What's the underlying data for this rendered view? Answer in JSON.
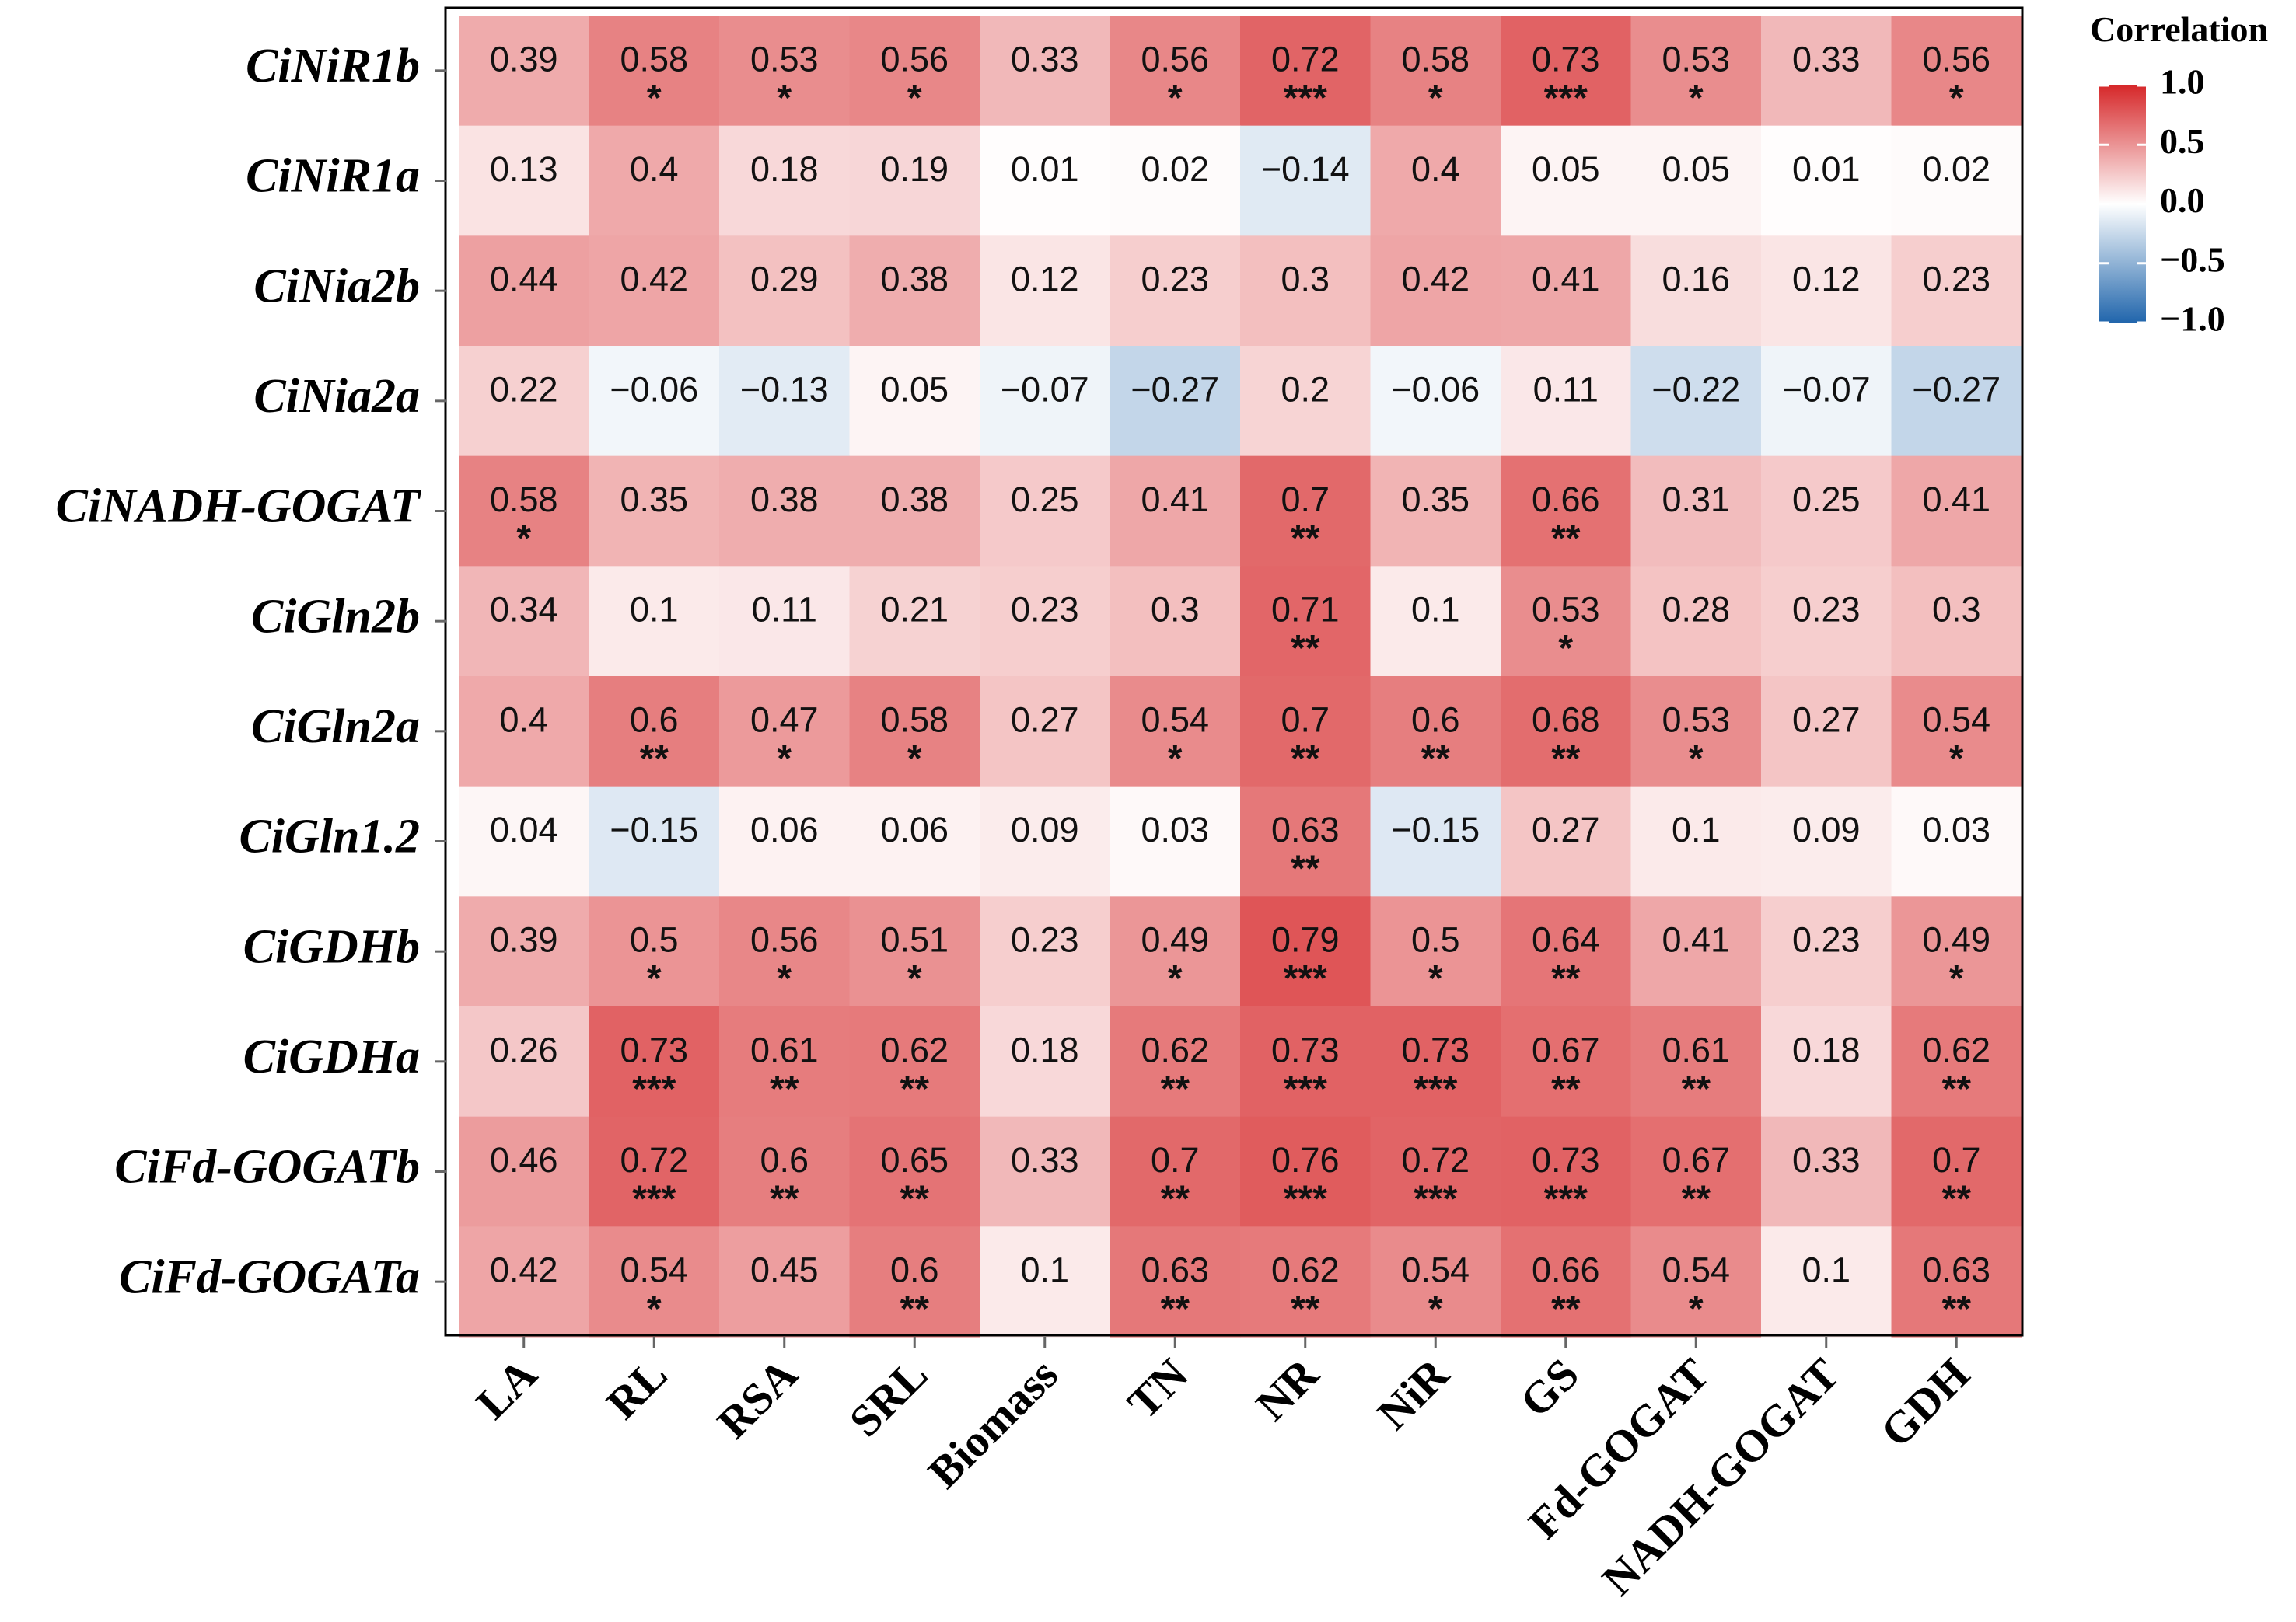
{
  "chart_data": {
    "type": "heatmap",
    "title": "",
    "rows": [
      "CiNiR1b",
      "CiNiR1a",
      "CiNia2b",
      "CiNia2a",
      "CiNADH-GOGAT",
      "CiGln2b",
      "CiGln2a",
      "CiGln1.2",
      "CiGDHb",
      "CiGDHa",
      "CiFd-GOGATb",
      "CiFd-GOGATa"
    ],
    "columns": [
      "LA",
      "RL",
      "RSA",
      "SRL",
      "Biomass",
      "TN",
      "NR",
      "NiR",
      "GS",
      "Fd-GOGAT",
      "NADH-GOGAT",
      "GDH"
    ],
    "values": [
      [
        "0.39",
        "0.58",
        "0.53",
        "0.56",
        "0.33",
        "0.56",
        "0.72",
        "0.58",
        "0.73",
        "0.53",
        "0.33",
        "0.56"
      ],
      [
        "0.13",
        "0.4",
        "0.18",
        "0.19",
        "0.01",
        "0.02",
        "−0.14",
        "0.4",
        "0.05",
        "0.05",
        "0.01",
        "0.02"
      ],
      [
        "0.44",
        "0.42",
        "0.29",
        "0.38",
        "0.12",
        "0.23",
        "0.3",
        "0.42",
        "0.41",
        "0.16",
        "0.12",
        "0.23"
      ],
      [
        "0.22",
        "−0.06",
        "−0.13",
        "0.05",
        "−0.07",
        "−0.27",
        "0.2",
        "−0.06",
        "0.11",
        "−0.22",
        "−0.07",
        "−0.27"
      ],
      [
        "0.58",
        "0.35",
        "0.38",
        "0.38",
        "0.25",
        "0.41",
        "0.7",
        "0.35",
        "0.66",
        "0.31",
        "0.25",
        "0.41"
      ],
      [
        "0.34",
        "0.1",
        "0.11",
        "0.21",
        "0.23",
        "0.3",
        "0.71",
        "0.1",
        "0.53",
        "0.28",
        "0.23",
        "0.3"
      ],
      [
        "0.4",
        "0.6",
        "0.47",
        "0.58",
        "0.27",
        "0.54",
        "0.7",
        "0.6",
        "0.68",
        "0.53",
        "0.27",
        "0.54"
      ],
      [
        "0.04",
        "−0.15",
        "0.06",
        "0.06",
        "0.09",
        "0.03",
        "0.63",
        "−0.15",
        "0.27",
        "0.1",
        "0.09",
        "0.03"
      ],
      [
        "0.39",
        "0.5",
        "0.56",
        "0.51",
        "0.23",
        "0.49",
        "0.79",
        "0.5",
        "0.64",
        "0.41",
        "0.23",
        "0.49"
      ],
      [
        "0.26",
        "0.73",
        "0.61",
        "0.62",
        "0.18",
        "0.62",
        "0.73",
        "0.73",
        "0.67",
        "0.61",
        "0.18",
        "0.62"
      ],
      [
        "0.46",
        "0.72",
        "0.6",
        "0.65",
        "0.33",
        "0.7",
        "0.76",
        "0.72",
        "0.73",
        "0.67",
        "0.33",
        "0.7"
      ],
      [
        "0.42",
        "0.54",
        "0.45",
        "0.6",
        "0.1",
        "0.63",
        "0.62",
        "0.54",
        "0.66",
        "0.54",
        "0.1",
        "0.63"
      ]
    ],
    "significance": [
      [
        "",
        "*",
        "*",
        "*",
        "",
        "*",
        "***",
        "*",
        "***",
        "*",
        "",
        "*"
      ],
      [
        "",
        "",
        "",
        "",
        "",
        "",
        "",
        "",
        "",
        "",
        "",
        ""
      ],
      [
        "",
        "",
        "",
        "",
        "",
        "",
        "",
        "",
        "",
        "",
        "",
        ""
      ],
      [
        "",
        "",
        "",
        "",
        "",
        "",
        "",
        "",
        "",
        "",
        "",
        ""
      ],
      [
        "*",
        "",
        "",
        "",
        "",
        "",
        "**",
        "",
        "**",
        "",
        "",
        ""
      ],
      [
        "",
        "",
        "",
        "",
        "",
        "",
        "**",
        "",
        "*",
        "",
        "",
        ""
      ],
      [
        "",
        "**",
        "*",
        "*",
        "",
        "*",
        "**",
        "**",
        "**",
        "*",
        "",
        "*"
      ],
      [
        "",
        "",
        "",
        "",
        "",
        "",
        "**",
        "",
        "",
        "",
        "",
        ""
      ],
      [
        "",
        "*",
        "*",
        "*",
        "",
        "*",
        "***",
        "*",
        "**",
        "",
        "",
        "*"
      ],
      [
        "",
        "***",
        "**",
        "**",
        "",
        "**",
        "***",
        "***",
        "**",
        "**",
        "",
        "**"
      ],
      [
        "",
        "***",
        "**",
        "**",
        "",
        "**",
        "***",
        "***",
        "***",
        "**",
        "",
        "**"
      ],
      [
        "",
        "*",
        "",
        "**",
        "",
        "**",
        "**",
        "*",
        "**",
        "*",
        "",
        "**"
      ]
    ],
    "color_scale": {
      "low": "#2166ac",
      "mid": "#ffffff",
      "high": "#d6282a",
      "range": [
        -1.0,
        1.0
      ]
    },
    "legend": {
      "title": "Correlation",
      "ticks": [
        "1.0",
        "0.5",
        "0.0",
        "−0.5",
        "−1.0"
      ],
      "tick_values": [
        1.0,
        0.5,
        0.0,
        -0.5,
        -1.0
      ],
      "placement": "top-right"
    }
  }
}
